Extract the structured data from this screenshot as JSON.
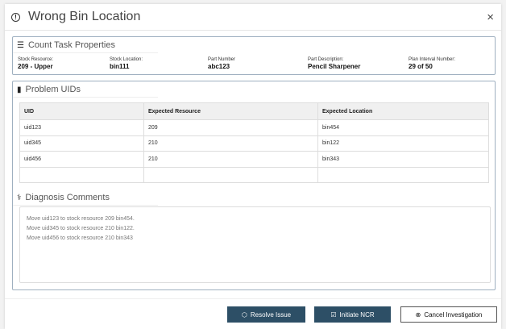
{
  "header": {
    "title": "Wrong Bin Location",
    "icon": "alert-circle-icon",
    "close": "×"
  },
  "count_task": {
    "title": "Count Task Properties",
    "props": [
      {
        "label": "Stock Resource:",
        "value": "209 - Upper"
      },
      {
        "label": "Stock Location:",
        "value": "bin111"
      },
      {
        "label": "Part Number",
        "value": "abc123"
      },
      {
        "label": "Part Description:",
        "value": "Pencil Sharpener"
      },
      {
        "label": "Plan Interval Number:",
        "value": "29 of 50"
      }
    ]
  },
  "problem": {
    "title": "Problem UIDs",
    "columns": [
      "UID",
      "Expected Resource",
      "Expected Location"
    ],
    "rows": [
      [
        "uid123",
        "209",
        "bin454"
      ],
      [
        "uid345",
        "210",
        "bin122"
      ],
      [
        "uid456",
        "210",
        "bin343"
      ],
      [
        "",
        "",
        ""
      ]
    ]
  },
  "diagnosis": {
    "title": "Diagnosis Comments",
    "lines": [
      "Move uid123 to stock resource 209 bin454.",
      "Move uid345 to stock resource 210 bin122.",
      "Move uid456 to stock resource 210 bin343"
    ]
  },
  "footer": {
    "resolve": "Resolve Issue",
    "ncr": "Initiate NCR",
    "cancel": "Cancel Investigation"
  },
  "colors": {
    "primary": "#2d4f66",
    "border": "#9fb0c0"
  }
}
